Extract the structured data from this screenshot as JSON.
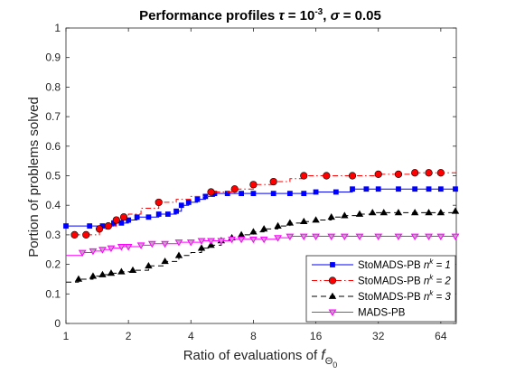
{
  "chart_data": {
    "type": "line",
    "title": {
      "prefix": "Performance profiles ",
      "tau_sym": "τ",
      "tau_eq": " = 10",
      "tau_exp": "-3",
      "sep": ", ",
      "sigma_sym": "σ",
      "sigma_eq": " = 0.05"
    },
    "xlabel": {
      "text": "Ratio of evaluations of ",
      "f": "f",
      "sub": "Θ",
      "subsub": "0"
    },
    "ylabel": "Portion of problems solved",
    "x_scale": "log2",
    "xlim": [
      1,
      76
    ],
    "ylim": [
      0,
      1
    ],
    "x_ticks": [
      1,
      2,
      4,
      8,
      16,
      32,
      64
    ],
    "x_tick_labels": [
      "1",
      "2",
      "4",
      "8",
      "16",
      "32",
      "64"
    ],
    "y_ticks": [
      0,
      0.1,
      0.2,
      0.3,
      0.4,
      0.5,
      0.6,
      0.7,
      0.8,
      0.9,
      1
    ],
    "y_tick_labels": [
      "0",
      "0.1",
      "0.2",
      "0.3",
      "0.4",
      "0.5",
      "0.6",
      "0.7",
      "0.8",
      "0.9",
      "1"
    ],
    "grid": false,
    "legend_position": "bottom-right",
    "series": [
      {
        "name": "StoMADS-PB",
        "name_n": "n",
        "name_k": "k",
        "name_eq": " = 1",
        "color": "#0000ff",
        "dash": "solid",
        "marker": "square",
        "x": [
          1,
          1.3,
          1.5,
          1.7,
          1.85,
          2,
          2.2,
          2.5,
          2.8,
          3.1,
          3.4,
          3.6,
          3.9,
          4.3,
          4.7,
          5.2,
          6,
          7,
          8,
          10,
          12,
          14,
          16,
          20,
          24,
          28,
          32,
          40,
          48,
          56,
          64,
          76
        ],
        "y": [
          0.33,
          0.33,
          0.33,
          0.34,
          0.34,
          0.35,
          0.36,
          0.36,
          0.37,
          0.37,
          0.38,
          0.4,
          0.41,
          0.42,
          0.43,
          0.44,
          0.44,
          0.44,
          0.44,
          0.44,
          0.44,
          0.44,
          0.445,
          0.445,
          0.455,
          0.455,
          0.455,
          0.455,
          0.455,
          0.455,
          0.455,
          0.455
        ],
        "markers_x": [
          1,
          1.3,
          1.5,
          1.7,
          1.85,
          2,
          2.2,
          2.5,
          2.8,
          3.1,
          3.4,
          3.6,
          3.9,
          4.3,
          4.7,
          5.2,
          6,
          7,
          8,
          10,
          12,
          14,
          16,
          20,
          24,
          28,
          32,
          40,
          48,
          56,
          64,
          76
        ]
      },
      {
        "name": "StoMADS-PB",
        "name_n": "n",
        "name_k": "k",
        "name_eq": " = 2",
        "color": "#ff0000",
        "dash": "6,3,1.5,3",
        "marker": "circle",
        "x": [
          1.1,
          1.25,
          1.45,
          1.6,
          1.75,
          1.9,
          2,
          2.3,
          2.8,
          3.4,
          4,
          5,
          6.5,
          8,
          10,
          12,
          14,
          16,
          20,
          24,
          28,
          32,
          40,
          48,
          56,
          64,
          76
        ],
        "y": [
          0.3,
          0.3,
          0.32,
          0.33,
          0.35,
          0.36,
          0.37,
          0.39,
          0.41,
          0.42,
          0.43,
          0.445,
          0.455,
          0.47,
          0.48,
          0.49,
          0.5,
          0.5,
          0.5,
          0.5,
          0.5,
          0.505,
          0.505,
          0.51,
          0.51,
          0.51,
          0.51
        ],
        "markers_x": [
          1.1,
          1.25,
          1.45,
          1.6,
          1.75,
          1.9,
          2.8,
          5,
          6.5,
          8,
          10,
          14,
          18,
          24,
          32,
          40,
          48,
          56,
          64
        ]
      },
      {
        "name": "StoMADS-PB",
        "name_n": "n",
        "name_k": "k",
        "name_eq": " = 3",
        "color": "#000000",
        "dash": "6,4",
        "marker": "triangle-up",
        "x": [
          1,
          1.15,
          1.35,
          1.5,
          1.65,
          1.85,
          2.1,
          2.5,
          3,
          3.5,
          4,
          4.5,
          5,
          5.6,
          6.3,
          7,
          8,
          9,
          10.5,
          12,
          14,
          16,
          19,
          22,
          26,
          30,
          34,
          40,
          48,
          56,
          64,
          76
        ],
        "y": [
          0.14,
          0.15,
          0.16,
          0.165,
          0.17,
          0.175,
          0.18,
          0.195,
          0.21,
          0.23,
          0.24,
          0.255,
          0.265,
          0.28,
          0.29,
          0.3,
          0.31,
          0.32,
          0.33,
          0.34,
          0.345,
          0.35,
          0.36,
          0.365,
          0.37,
          0.375,
          0.375,
          0.375,
          0.375,
          0.375,
          0.375,
          0.38
        ],
        "markers_x": [
          1.15,
          1.35,
          1.5,
          1.65,
          1.85,
          2.1,
          2.5,
          3,
          3.5,
          4.5,
          5,
          5.6,
          6.3,
          7,
          8,
          9,
          10.5,
          12,
          14,
          16,
          19,
          22,
          26,
          30,
          34,
          40,
          48,
          56,
          64,
          76
        ]
      },
      {
        "name": "MADS-PB",
        "color": "#ff00ff",
        "dash": "solid",
        "marker": "triangle-down",
        "x": [
          1,
          1.2,
          1.35,
          1.5,
          1.65,
          1.85,
          2,
          2.3,
          2.6,
          3,
          3.5,
          4,
          4.5,
          5,
          5.6,
          6.3,
          7,
          8,
          9,
          10.5,
          12,
          14,
          16,
          19,
          22,
          26,
          32,
          40,
          48,
          56,
          64,
          76
        ],
        "y": [
          0.23,
          0.24,
          0.245,
          0.25,
          0.255,
          0.26,
          0.26,
          0.265,
          0.27,
          0.27,
          0.275,
          0.275,
          0.28,
          0.28,
          0.28,
          0.285,
          0.285,
          0.285,
          0.285,
          0.29,
          0.295,
          0.295,
          0.295,
          0.295,
          0.295,
          0.295,
          0.295,
          0.295,
          0.295,
          0.295,
          0.295,
          0.295
        ],
        "markers_x": [
          1.2,
          1.35,
          1.5,
          1.65,
          1.85,
          2,
          2.3,
          2.6,
          3,
          3.5,
          4,
          4.5,
          5,
          5.6,
          6.3,
          7,
          8,
          9,
          10.5,
          12,
          14,
          16,
          19,
          22,
          26,
          32,
          40,
          48,
          56,
          64,
          76
        ]
      }
    ]
  }
}
